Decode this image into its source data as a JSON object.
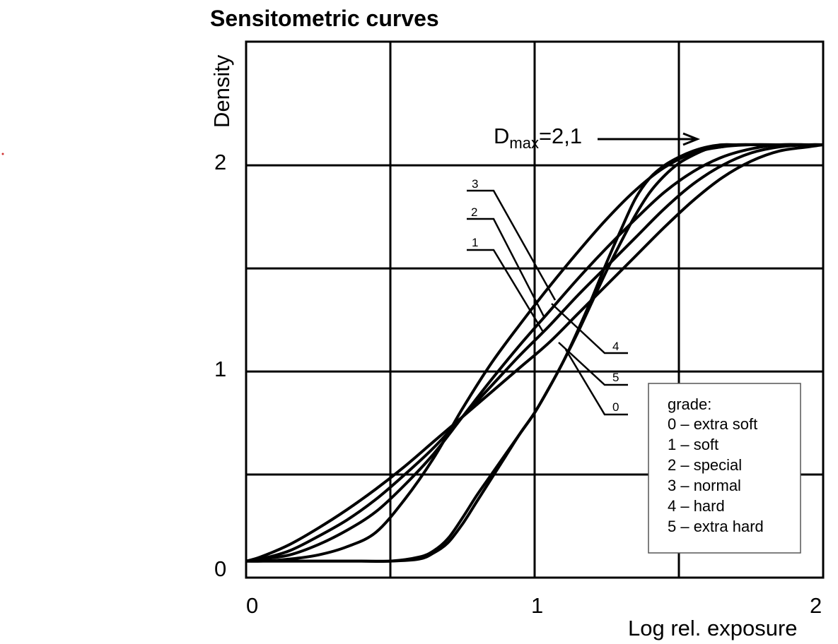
{
  "chart_data": {
    "type": "line",
    "title": "Sensitometric curves",
    "xlabel": "Log rel. exposure",
    "ylabel": "Density",
    "xlim": [
      0,
      2
    ],
    "ylim": [
      0,
      2.6
    ],
    "x_ticks": [
      "0",
      "1",
      "2"
    ],
    "y_ticks": [
      "0",
      "1",
      "2"
    ],
    "grid": true,
    "dmax_annotation": {
      "prefix": "D",
      "subscript": "max",
      "suffix": "=2,1"
    },
    "series": [
      {
        "name": "0",
        "x": [
          0,
          0.05,
          0.15,
          0.25,
          0.35,
          0.45,
          0.55,
          0.65,
          0.75,
          0.85,
          0.95,
          1.05,
          1.15,
          1.25,
          1.35,
          1.45,
          1.55,
          1.65,
          1.75,
          1.85,
          1.95,
          2.0
        ],
        "y": [
          0.08,
          0.1,
          0.16,
          0.24,
          0.33,
          0.43,
          0.54,
          0.66,
          0.78,
          0.9,
          1.02,
          1.14,
          1.28,
          1.42,
          1.56,
          1.7,
          1.83,
          1.94,
          2.02,
          2.07,
          2.09,
          2.1
        ]
      },
      {
        "name": "1",
        "x": [
          0,
          0.05,
          0.15,
          0.25,
          0.35,
          0.45,
          0.55,
          0.65,
          0.75,
          0.85,
          0.95,
          1.05,
          1.15,
          1.25,
          1.35,
          1.45,
          1.55,
          1.65,
          1.75,
          1.85,
          1.95,
          2.0
        ],
        "y": [
          0.08,
          0.09,
          0.13,
          0.2,
          0.28,
          0.38,
          0.5,
          0.63,
          0.78,
          0.93,
          1.08,
          1.22,
          1.37,
          1.51,
          1.65,
          1.79,
          1.91,
          2.0,
          2.06,
          2.09,
          2.1,
          2.1
        ]
      },
      {
        "name": "2",
        "x": [
          0,
          0.05,
          0.15,
          0.25,
          0.35,
          0.45,
          0.55,
          0.65,
          0.75,
          0.85,
          0.95,
          1.05,
          1.15,
          1.25,
          1.35,
          1.45,
          1.55,
          1.65,
          1.75,
          1.85,
          1.95,
          2.0
        ],
        "y": [
          0.08,
          0.09,
          0.11,
          0.16,
          0.23,
          0.32,
          0.45,
          0.6,
          0.78,
          0.96,
          1.13,
          1.29,
          1.45,
          1.6,
          1.74,
          1.87,
          1.97,
          2.04,
          2.08,
          2.1,
          2.1,
          2.1
        ]
      },
      {
        "name": "3",
        "x": [
          0,
          0.05,
          0.15,
          0.25,
          0.35,
          0.45,
          0.55,
          0.65,
          0.75,
          0.85,
          0.95,
          1.05,
          1.15,
          1.25,
          1.35,
          1.45,
          1.55,
          1.65,
          1.75,
          1.85,
          1.95,
          2.0
        ],
        "y": [
          0.08,
          0.08,
          0.09,
          0.11,
          0.15,
          0.22,
          0.38,
          0.58,
          0.82,
          1.04,
          1.23,
          1.41,
          1.58,
          1.74,
          1.88,
          1.99,
          2.06,
          2.09,
          2.1,
          2.1,
          2.1,
          2.1
        ]
      },
      {
        "name": "4",
        "x": [
          0,
          0.1,
          0.2,
          0.3,
          0.4,
          0.5,
          0.6,
          0.65,
          0.7,
          0.75,
          0.8,
          0.85,
          0.9,
          0.95,
          1.0,
          1.05,
          1.1,
          1.15,
          1.2,
          1.25,
          1.3,
          1.35,
          1.4,
          1.45,
          1.5,
          1.55,
          1.6,
          1.65,
          1.7,
          1.8,
          1.9,
          2.0
        ],
        "y": [
          0.08,
          0.08,
          0.08,
          0.08,
          0.08,
          0.08,
          0.1,
          0.13,
          0.19,
          0.29,
          0.4,
          0.5,
          0.6,
          0.7,
          0.8,
          0.92,
          1.05,
          1.2,
          1.36,
          1.53,
          1.69,
          1.84,
          1.94,
          2.0,
          2.04,
          2.07,
          2.09,
          2.1,
          2.1,
          2.1,
          2.1,
          2.1
        ]
      },
      {
        "name": "5",
        "x": [
          0,
          0.1,
          0.2,
          0.3,
          0.4,
          0.5,
          0.6,
          0.65,
          0.7,
          0.75,
          0.8,
          0.85,
          0.9,
          0.95,
          1.0,
          1.05,
          1.1,
          1.15,
          1.2,
          1.25,
          1.3,
          1.35,
          1.4,
          1.45,
          1.5,
          1.55,
          1.6,
          1.65,
          1.7,
          1.8,
          1.9,
          2.0
        ],
        "y": [
          0.08,
          0.08,
          0.08,
          0.08,
          0.08,
          0.08,
          0.09,
          0.12,
          0.17,
          0.26,
          0.37,
          0.48,
          0.59,
          0.7,
          0.8,
          0.92,
          1.05,
          1.19,
          1.34,
          1.49,
          1.63,
          1.76,
          1.87,
          1.95,
          2.01,
          2.05,
          2.08,
          2.09,
          2.1,
          2.1,
          2.1,
          2.1
        ]
      }
    ],
    "callouts": [
      "3",
      "2",
      "1",
      "4",
      "5",
      "0"
    ],
    "legend": {
      "placement": "bottom-right",
      "title": "grade:",
      "entries": [
        "0 – extra soft",
        "1 – soft",
        "2 – special",
        "3 – normal",
        "4 – hard",
        "5 – extra hard"
      ]
    }
  }
}
